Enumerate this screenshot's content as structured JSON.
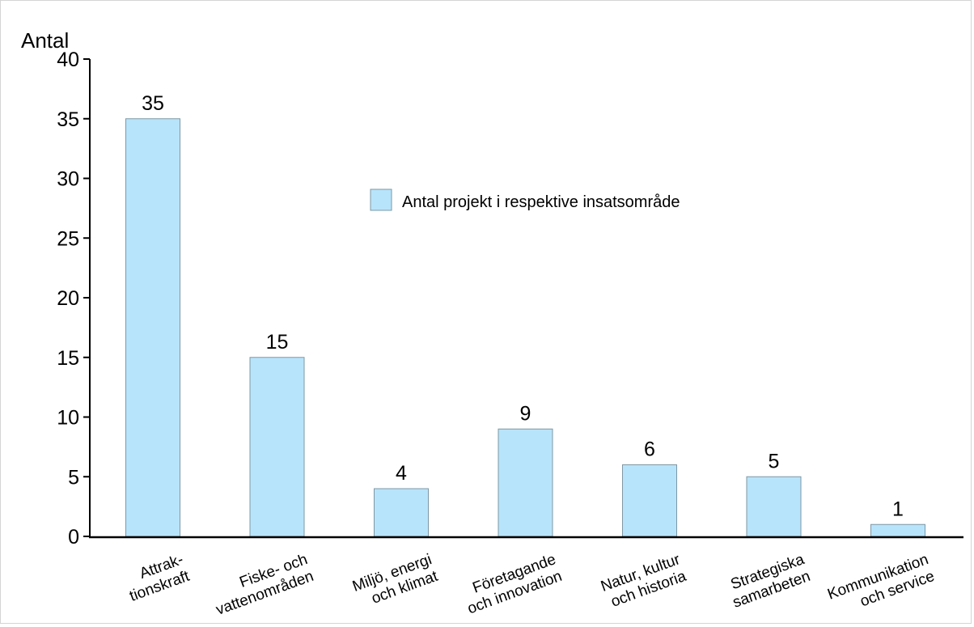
{
  "chart_data": {
    "type": "bar",
    "ylabel": "Antal",
    "xlabel": "",
    "title": "",
    "ylim": [
      0,
      40
    ],
    "yticks": [
      "0",
      "5",
      "10",
      "15",
      "20",
      "25",
      "30",
      "35",
      "40"
    ],
    "grid": false,
    "legend_position": "upper-center",
    "categories": [
      [
        "Attrak-",
        "tionskraft"
      ],
      [
        "Fiske- och",
        "vattenområden"
      ],
      [
        "Miljö, energi",
        "och klimat"
      ],
      [
        "Företagande",
        "och innovation"
      ],
      [
        "Natur, kultur",
        "och historia"
      ],
      [
        "Strategiska",
        "samarbeten"
      ],
      [
        "Kommunikation",
        "och service"
      ]
    ],
    "series": [
      {
        "name": "Antal projekt i respektive insatsområde",
        "color": "#b8e4fb",
        "values": [
          35,
          15,
          4,
          9,
          6,
          5,
          1
        ]
      }
    ]
  }
}
